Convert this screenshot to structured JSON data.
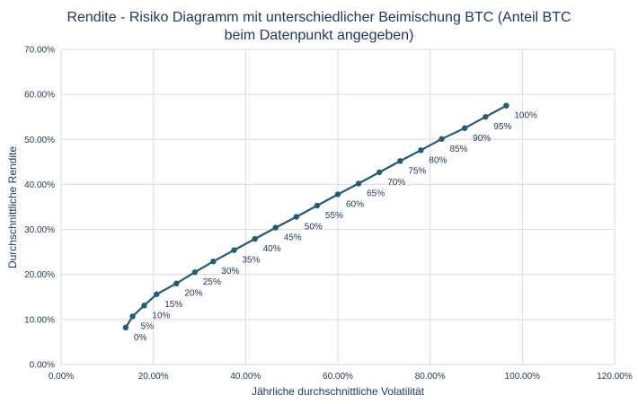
{
  "chart_data": {
    "type": "line",
    "title_lines": [
      "Rendite - Risiko Diagramm mit unterschiedlicher Beimischung BTC (Anteil BTC",
      "beim Datenpunkt angegeben)"
    ],
    "xlabel": "Jährliche durchschnittliche Volatilität",
    "ylabel": "Durchschnittliche Rendite",
    "xlim": [
      0,
      1.2
    ],
    "ylim": [
      0,
      0.7
    ],
    "x_ticks": [
      0,
      0.2,
      0.4,
      0.6,
      0.8,
      1.0,
      1.2
    ],
    "x_tick_labels": [
      "0.00%",
      "20.00%",
      "40.00%",
      "60.00%",
      "80.00%",
      "100.00%",
      "120.00%"
    ],
    "y_ticks": [
      0,
      0.1,
      0.2,
      0.3,
      0.4,
      0.5,
      0.6,
      0.7
    ],
    "y_tick_labels": [
      "0.00%",
      "10.00%",
      "20.00%",
      "30.00%",
      "40.00%",
      "50.00%",
      "60.00%",
      "70.00%"
    ],
    "grid": true,
    "legend": "none",
    "line_color": "#1f5c7a",
    "series": [
      {
        "points": [
          {
            "x": 0.14,
            "y": 0.082,
            "label": "0%"
          },
          {
            "x": 0.155,
            "y": 0.107,
            "label": "5%"
          },
          {
            "x": 0.18,
            "y": 0.131,
            "label": "10%"
          },
          {
            "x": 0.207,
            "y": 0.156,
            "label": "15%"
          },
          {
            "x": 0.25,
            "y": 0.18,
            "label": "20%"
          },
          {
            "x": 0.29,
            "y": 0.205,
            "label": "25%"
          },
          {
            "x": 0.33,
            "y": 0.229,
            "label": "30%"
          },
          {
            "x": 0.375,
            "y": 0.254,
            "label": "35%"
          },
          {
            "x": 0.42,
            "y": 0.279,
            "label": "40%"
          },
          {
            "x": 0.465,
            "y": 0.304,
            "label": "45%"
          },
          {
            "x": 0.51,
            "y": 0.328,
            "label": "50%"
          },
          {
            "x": 0.555,
            "y": 0.353,
            "label": "55%"
          },
          {
            "x": 0.6,
            "y": 0.378,
            "label": "60%"
          },
          {
            "x": 0.645,
            "y": 0.402,
            "label": "65%"
          },
          {
            "x": 0.69,
            "y": 0.427,
            "label": "70%"
          },
          {
            "x": 0.735,
            "y": 0.452,
            "label": "75%"
          },
          {
            "x": 0.78,
            "y": 0.476,
            "label": "80%"
          },
          {
            "x": 0.825,
            "y": 0.501,
            "label": "85%"
          },
          {
            "x": 0.875,
            "y": 0.525,
            "label": "90%"
          },
          {
            "x": 0.92,
            "y": 0.55,
            "label": "95%"
          },
          {
            "x": 0.965,
            "y": 0.575,
            "label": "100%"
          }
        ]
      }
    ]
  }
}
